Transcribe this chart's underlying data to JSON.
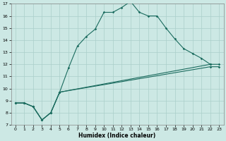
{
  "xlabel": "Humidex (Indice chaleur)",
  "xlim": [
    -0.5,
    23.5
  ],
  "ylim": [
    7,
    17
  ],
  "xticks": [
    0,
    1,
    2,
    3,
    4,
    5,
    6,
    7,
    8,
    9,
    10,
    11,
    12,
    13,
    14,
    15,
    16,
    17,
    18,
    19,
    20,
    21,
    22,
    23
  ],
  "yticks": [
    7,
    8,
    9,
    10,
    11,
    12,
    13,
    14,
    15,
    16,
    17
  ],
  "bg_color": "#cce8e4",
  "line_color": "#1a6b5e",
  "grid_color": "#aacfca",
  "line1_x": [
    0,
    1,
    2,
    3,
    4,
    5,
    6,
    7,
    8,
    9,
    10,
    11,
    12,
    13,
    14,
    15,
    16,
    17,
    18,
    19,
    20,
    21,
    22
  ],
  "line1_y": [
    8.8,
    8.8,
    8.5,
    7.4,
    8.0,
    9.7,
    11.7,
    13.5,
    14.3,
    14.9,
    16.3,
    16.3,
    16.7,
    17.2,
    16.3,
    16.0,
    16.0,
    15.0,
    14.1,
    13.3,
    12.9,
    12.5,
    12.0
  ],
  "line2_x": [
    0,
    1,
    2,
    3,
    4,
    5,
    22,
    23
  ],
  "line2_y": [
    8.8,
    8.8,
    8.5,
    7.4,
    8.0,
    9.7,
    12.0,
    12.0
  ],
  "line3_x": [
    0,
    1,
    2,
    3,
    4,
    5,
    22,
    23
  ],
  "line3_y": [
    8.8,
    8.8,
    8.5,
    7.4,
    8.0,
    9.7,
    11.8,
    11.8
  ]
}
